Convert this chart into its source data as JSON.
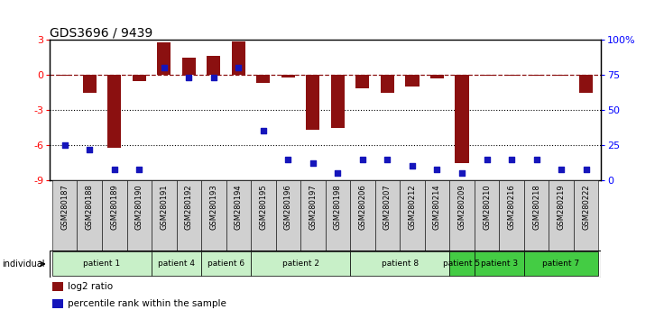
{
  "title": "GDS3696 / 9439",
  "samples": [
    "GSM280187",
    "GSM280188",
    "GSM280189",
    "GSM280190",
    "GSM280191",
    "GSM280192",
    "GSM280193",
    "GSM280194",
    "GSM280195",
    "GSM280196",
    "GSM280197",
    "GSM280198",
    "GSM280206",
    "GSM280207",
    "GSM280212",
    "GSM280214",
    "GSM280209",
    "GSM280210",
    "GSM280216",
    "GSM280218",
    "GSM280219",
    "GSM280222"
  ],
  "log2_ratio": [
    -0.1,
    -1.5,
    -6.2,
    -0.5,
    2.8,
    1.5,
    1.65,
    2.9,
    -0.7,
    -0.25,
    -4.7,
    -4.5,
    -1.15,
    -1.55,
    -1.0,
    -0.3,
    -7.5,
    -0.1,
    -0.1,
    -0.1,
    -0.1,
    -1.5
  ],
  "percentile": [
    25,
    22,
    8,
    8,
    80,
    73,
    73,
    80,
    35,
    15,
    12,
    5,
    15,
    15,
    10,
    8,
    5,
    15,
    15,
    15,
    8,
    8
  ],
  "patients": [
    {
      "label": "patient 1",
      "start": 0,
      "end": 4,
      "color": "#c8f0c8"
    },
    {
      "label": "patient 4",
      "start": 4,
      "end": 6,
      "color": "#c8f0c8"
    },
    {
      "label": "patient 6",
      "start": 6,
      "end": 8,
      "color": "#c8f0c8"
    },
    {
      "label": "patient 2",
      "start": 8,
      "end": 12,
      "color": "#c8f0c8"
    },
    {
      "label": "patient 8",
      "start": 12,
      "end": 16,
      "color": "#c8f0c8"
    },
    {
      "label": "patient 5",
      "start": 16,
      "end": 17,
      "color": "#44cc44"
    },
    {
      "label": "patient 3",
      "start": 17,
      "end": 19,
      "color": "#44cc44"
    },
    {
      "label": "patient 7",
      "start": 19,
      "end": 22,
      "color": "#44cc44"
    }
  ],
  "ylim_left": [
    -9,
    3
  ],
  "ylim_right": [
    0,
    100
  ],
  "bar_color": "#8B1010",
  "dot_color": "#1515BB",
  "left_ticks": [
    -9,
    -6,
    -3,
    0,
    3
  ],
  "right_ticks": [
    0,
    25,
    50,
    75,
    100
  ],
  "right_tick_labels": [
    "0",
    "25",
    "50",
    "75",
    "100%"
  ],
  "legend_items": [
    {
      "color": "#8B1010",
      "label": "log2 ratio"
    },
    {
      "color": "#1515BB",
      "label": "percentile rank within the sample"
    }
  ]
}
